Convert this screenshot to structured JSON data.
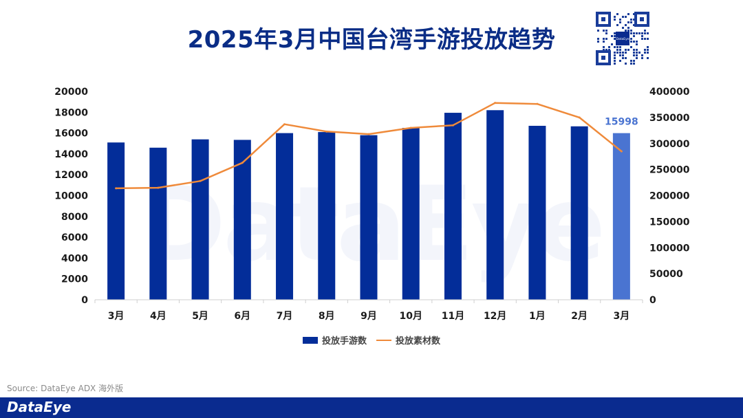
{
  "title": "2025年3月中国台湾手游投放趋势",
  "watermark": "DataEye",
  "source": "Source: DataEye ADX 海外版",
  "footer_logo": "DataEye",
  "qr_label": "DataEye",
  "colors": {
    "bar": "#032d99",
    "bar_highlight": "#4a74d1",
    "line": "#ef8a3a",
    "title": "#0a2d86",
    "footer": "#0a2b8f"
  },
  "chart_data": {
    "type": "bar",
    "categories": [
      "3月",
      "4月",
      "5月",
      "6月",
      "7月",
      "8月",
      "9月",
      "10月",
      "11月",
      "12月",
      "1月",
      "2月",
      "3月"
    ],
    "series": [
      {
        "name": "投放手游数",
        "type": "bar",
        "axis": "left",
        "values": [
          15100,
          14600,
          15400,
          15350,
          16000,
          16100,
          15800,
          16500,
          17950,
          18200,
          16700,
          16650,
          15998
        ]
      },
      {
        "name": "投放素材数",
        "type": "line",
        "axis": "right",
        "values": [
          214000,
          215000,
          228000,
          263000,
          337000,
          323000,
          318000,
          330000,
          335000,
          378000,
          376000,
          350000,
          285000
        ]
      }
    ],
    "highlight_label": "15998",
    "y_left_ticks": [
      "0",
      "2000",
      "4000",
      "6000",
      "8000",
      "10000",
      "12000",
      "14000",
      "16000",
      "18000",
      "20000"
    ],
    "y_right_ticks": [
      "0",
      "50000",
      "100000",
      "150000",
      "200000",
      "250000",
      "300000",
      "350000",
      "400000"
    ],
    "ylim_left": [
      0,
      20000
    ],
    "ylim_right": [
      0,
      400000
    ],
    "grid": false,
    "legend_position": "bottom"
  }
}
